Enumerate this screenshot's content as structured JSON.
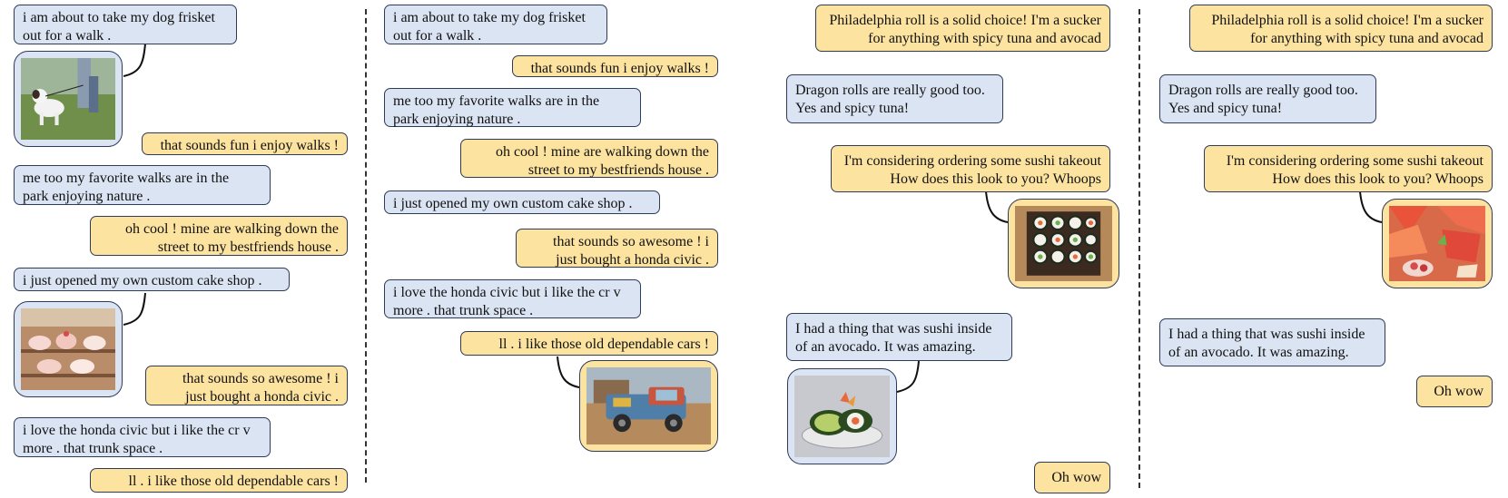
{
  "panels": {
    "p1": {
      "m1": "i am about to take my dog frisket\nout for a walk .",
      "m2": "that sounds fun i enjoy walks !",
      "m3": "me too my favorite walks are in the\npark enjoying nature .",
      "m4": "oh cool ! mine are walking down the\nstreet to my bestfriends house .",
      "m5": "i just opened my own custom cake shop .",
      "m6": "that sounds so awesome ! i\njust bought a honda civic .",
      "m7": "i love the honda civic but i like the cr v\nmore . that trunk space .",
      "m8": "ll . i like those old dependable cars !"
    },
    "p2": {
      "m1": "i am about to take my dog frisket\nout for a walk .",
      "m2": "that sounds fun i enjoy walks !",
      "m3": "me too my favorite walks are in the\npark enjoying nature .",
      "m4": "oh cool ! mine are walking down the\nstreet to my bestfriends house .",
      "m5": "i just opened my own custom cake shop .",
      "m6": "that sounds so awesome ! i\njust bought a honda civic .",
      "m7": "i love the honda civic but i like the cr v\nmore . that trunk space .",
      "m8": "ll . i like those old dependable cars !"
    },
    "p3": {
      "m1": "Philadelphia roll is a solid choice! I'm a sucker\nfor anything with spicy tuna and avocad",
      "m2": "Dragon rolls are really good too.\nYes and spicy tuna!",
      "m3": "I'm considering ordering some sushi takeout\nHow does this look to you?  Whoops",
      "m4": "I had a thing that was sushi inside\nof an avocado. It was amazing.",
      "m5": "Oh wow"
    },
    "p4": {
      "m1": "Philadelphia roll is a solid choice! I'm a sucker\nfor anything with spicy tuna and avocad",
      "m2": "Dragon rolls are really good too.\nYes and spicy tuna!",
      "m3": "I'm considering ordering some sushi takeout\nHow does this look to you?  Whoops",
      "m4": "I had a thing that was sushi inside\nof an avocado. It was amazing.",
      "m5": "Oh wow"
    }
  },
  "images": {
    "p1_dog": "dog-walk-photo",
    "p1_cake": "cake-shop-photo",
    "p2_truck": "old-truck-photo",
    "p3_sushi_box": "sushi-box-photo",
    "p3_avocado": "avocado-sushi-photo",
    "p4_sashimi": "sashimi-platter-photo"
  },
  "colors": {
    "user_bubble": "#dbe4f3",
    "bot_bubble": "#fce3a0",
    "border": "#2f3b5a"
  }
}
